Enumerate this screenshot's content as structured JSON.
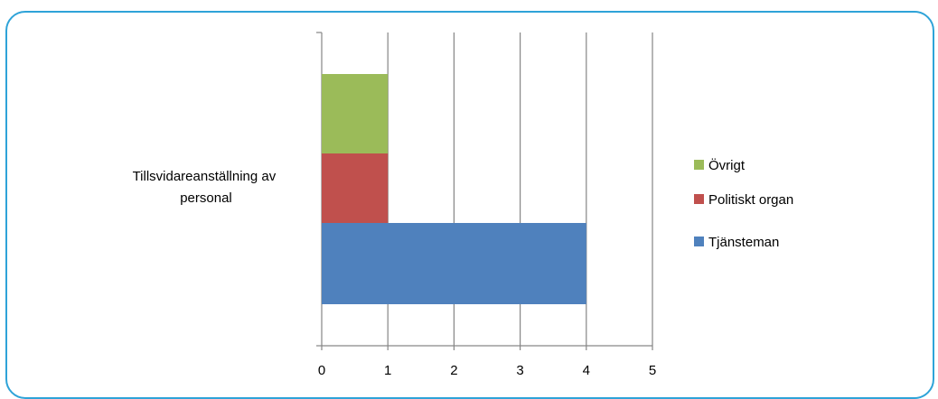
{
  "chart_data": {
    "type": "bar",
    "orientation": "horizontal",
    "stacked": false,
    "categories": [
      "Tillsvidareanställning av personal"
    ],
    "category_label_lines": [
      "Tillsvidareanställning av",
      "personal"
    ],
    "series": [
      {
        "name": "Tjänsteman",
        "values": [
          4
        ],
        "color": "#4f81bd"
      },
      {
        "name": "Politiskt organ",
        "values": [
          1
        ],
        "color": "#c0504d"
      },
      {
        "name": "Övrigt",
        "values": [
          1
        ],
        "color": "#9bbb59"
      }
    ],
    "legend_order": [
      "Övrigt",
      "Politiskt organ",
      "Tjänsteman"
    ],
    "xlim": [
      0,
      5
    ],
    "x_ticks": [
      "0",
      "1",
      "2",
      "3",
      "4",
      "5"
    ],
    "grid": "vertical",
    "legend_position": "right",
    "title": "",
    "xlabel": "",
    "ylabel": ""
  }
}
